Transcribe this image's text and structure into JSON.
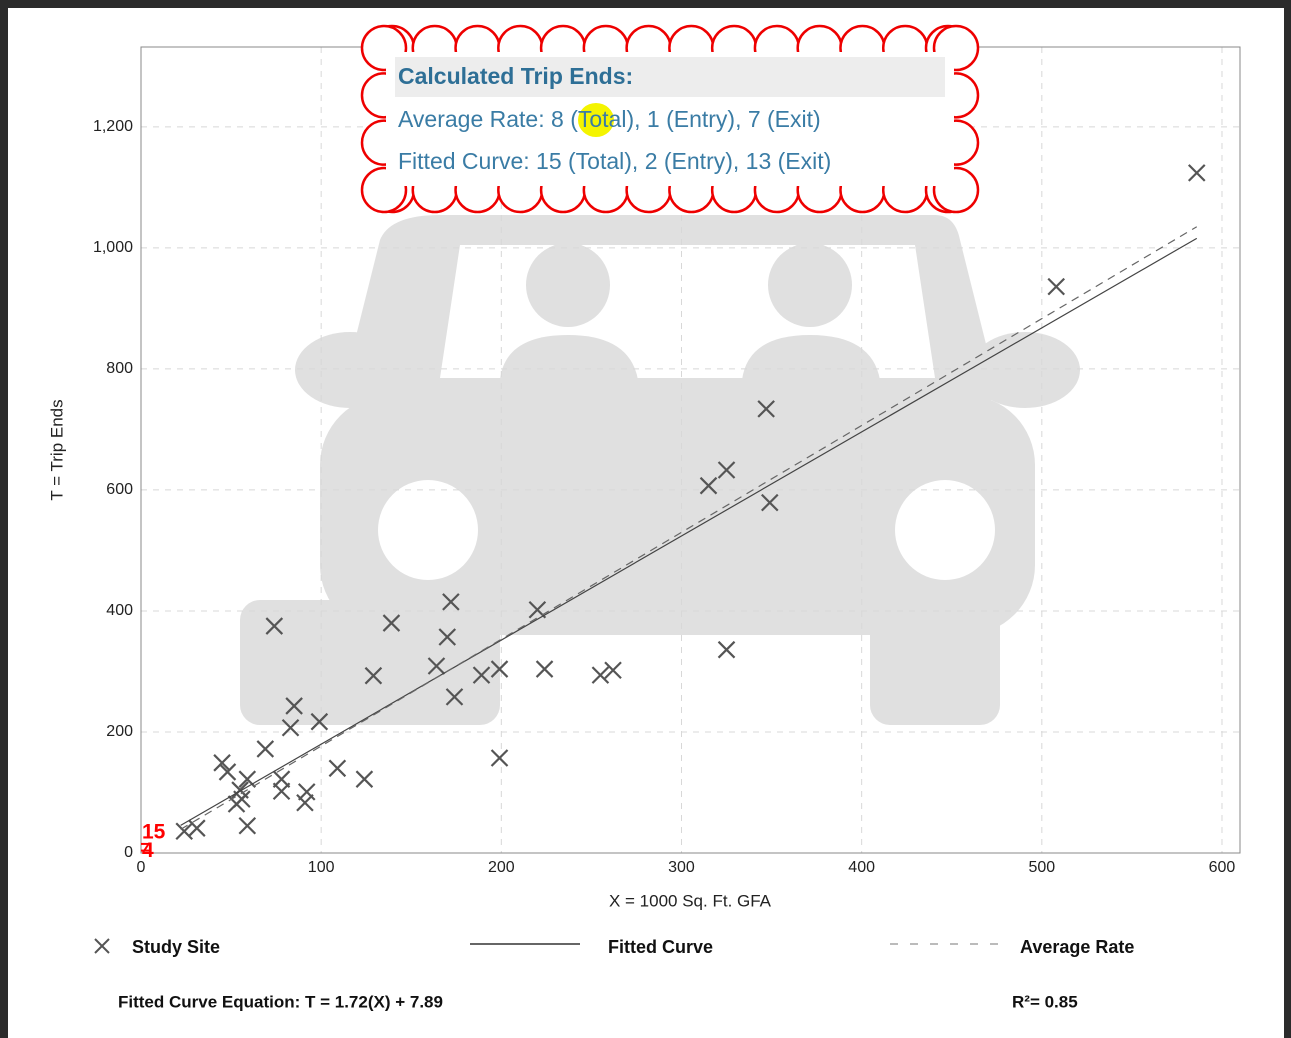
{
  "chart_data": {
    "type": "scatter",
    "x_label": "X = 1000 Sq. Ft. GFA",
    "y_label": "T = Trip Ends",
    "xlim": [
      0,
      610
    ],
    "ylim": [
      0,
      1332
    ],
    "xticks": [
      0,
      100,
      200,
      300,
      400,
      500,
      600
    ],
    "yticks": [
      0,
      200,
      400,
      600,
      800,
      {
        "value": 1000,
        "label": "1,000"
      },
      {
        "value": 1200,
        "label": "1,200"
      }
    ],
    "grid": true,
    "series": [
      {
        "name": "Study Site",
        "color": "#555555",
        "marker": "x",
        "x": [
          586,
          508,
          347,
          325,
          315,
          349,
          325,
          220,
          224,
          255,
          262,
          199,
          189,
          172,
          170,
          164,
          174,
          199,
          139,
          129,
          74,
          85,
          83,
          99,
          69,
          109,
          124,
          45,
          48,
          59,
          78,
          78,
          92,
          91,
          55,
          53,
          56,
          59,
          24,
          31
        ],
        "values": [
          1124,
          936,
          734,
          633,
          607,
          579,
          336,
          402,
          304,
          294,
          302,
          304,
          294,
          415,
          357,
          309,
          258,
          157,
          380,
          293,
          375,
          243,
          207,
          217,
          172,
          140,
          122,
          149,
          134,
          122,
          122,
          102,
          101,
          83,
          104,
          81,
          89,
          45,
          36,
          41
        ]
      },
      {
        "name": "Fitted Curve",
        "color": "#444444",
        "style": "solid",
        "x": [
          22,
          586
        ],
        "values": [
          45.7,
          1015.8
        ]
      },
      {
        "name": "Average Rate",
        "color": "#666666",
        "style": "dashed",
        "x": [
          22,
          586
        ],
        "values": [
          39,
          1035
        ]
      }
    ],
    "highlight_values": [
      15,
      4
    ],
    "highlight_color": "#ff0000",
    "callout": {
      "title": "Calculated Trip Ends:",
      "average_rate": [
        "Average Rate: ",
        "8",
        " (Total), 1 (Entry), 7 (Exit)"
      ],
      "fitted_curve": "Fitted Curve: 15 (Total), 2 (Entry), 13 (Exit)"
    },
    "equation": "Fitted Curve Equation: T = 1.72(X) + 7.89",
    "r_squared": "R²= 0.85"
  }
}
